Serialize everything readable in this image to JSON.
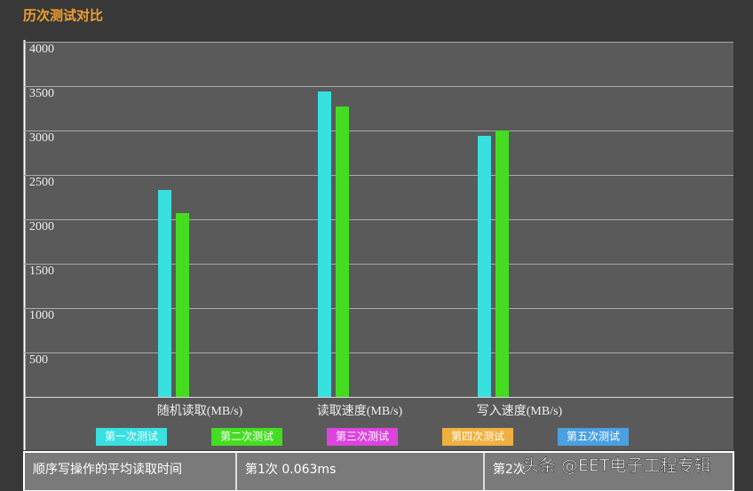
{
  "chart_data": {
    "type": "bar",
    "title": "历次测试对比",
    "categories": [
      "随机读取(MB/s)",
      "读取速度(MB/s)",
      "写入速度(MB/s)"
    ],
    "series": [
      {
        "name": "第一次测试",
        "color": "#38e0e0",
        "values": [
          2330,
          3440,
          2940
        ]
      },
      {
        "name": "第二次测试",
        "color": "#44dd22",
        "values": [
          2070,
          3270,
          3000
        ]
      },
      {
        "name": "第三次测试",
        "color": "#dd44dd",
        "values": [
          null,
          null,
          null
        ]
      },
      {
        "name": "第四次测试",
        "color": "#f0b040",
        "values": [
          null,
          null,
          null
        ]
      },
      {
        "name": "第五次测试",
        "color": "#4aa0e0",
        "values": [
          null,
          null,
          null
        ]
      }
    ],
    "ylim": [
      0,
      4000
    ],
    "yticks": [
      500,
      1000,
      1500,
      2000,
      2500,
      3000,
      3500,
      4000
    ],
    "grid": true
  },
  "table": {
    "rows": [
      [
        "顺序写操作的平均读取时间",
        "第1次 0.063ms",
        "第2次"
      ]
    ]
  },
  "watermark": "头条 @EET电子工程专辑"
}
